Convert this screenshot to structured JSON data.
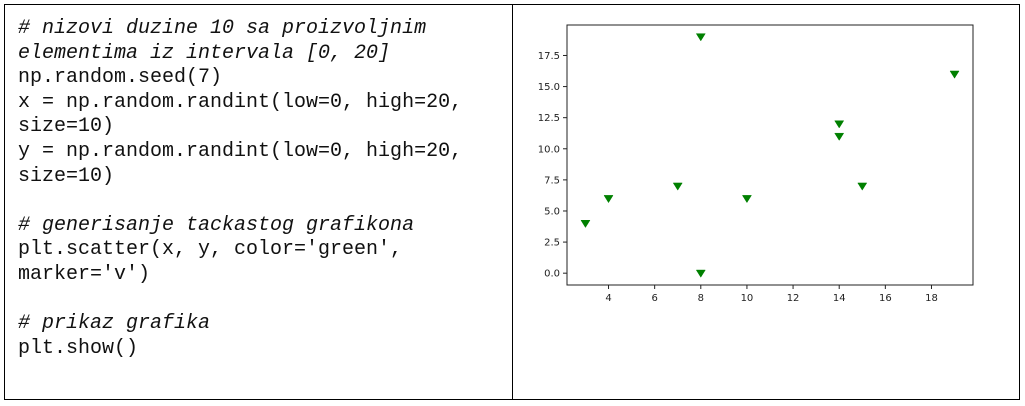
{
  "code": {
    "lines": [
      {
        "text": "# nizovi duzine 10 sa proizvoljnim",
        "comment": true
      },
      {
        "text": "elementima iz intervala [0, 20]",
        "comment": true
      },
      {
        "text": "np.random.seed(7)",
        "comment": false
      },
      {
        "text": "x = np.random.randint(low=0, high=20,",
        "comment": false
      },
      {
        "text": "size=10)",
        "comment": false
      },
      {
        "text": "y = np.random.randint(low=0, high=20,",
        "comment": false
      },
      {
        "text": "size=10)",
        "comment": false
      },
      {
        "text": "",
        "comment": false
      },
      {
        "text": "# generisanje tackastog grafikona",
        "comment": true
      },
      {
        "text": "plt.scatter(x, y, color='green',",
        "comment": false
      },
      {
        "text": "marker='v')",
        "comment": false
      },
      {
        "text": "",
        "comment": false
      },
      {
        "text": "# prikaz grafika",
        "comment": true
      },
      {
        "text": "plt.show()",
        "comment": false
      }
    ]
  },
  "chart_data": {
    "type": "scatter",
    "series": [
      {
        "x": [
          3,
          4,
          7,
          8,
          8,
          10,
          14,
          14,
          15,
          19
        ],
        "y": [
          4,
          6,
          7,
          19,
          0,
          6,
          12,
          11,
          7,
          16
        ],
        "color": "#008000",
        "marker": "triangle-down"
      }
    ],
    "xlim": [
      2.2,
      19.8
    ],
    "ylim": [
      -0.95,
      19.95
    ],
    "xticks": [
      4,
      6,
      8,
      10,
      12,
      14,
      16,
      18
    ],
    "xtick_labels": [
      "4",
      "6",
      "8",
      "10",
      "12",
      "14",
      "16",
      "18"
    ],
    "yticks": [
      0,
      2.5,
      5,
      7.5,
      10,
      12.5,
      15,
      17.5
    ],
    "ytick_labels": [
      "0.0",
      "2.5",
      "5.0",
      "7.5",
      "10.0",
      "12.5",
      "15.0",
      "17.5"
    ],
    "grid": false
  }
}
